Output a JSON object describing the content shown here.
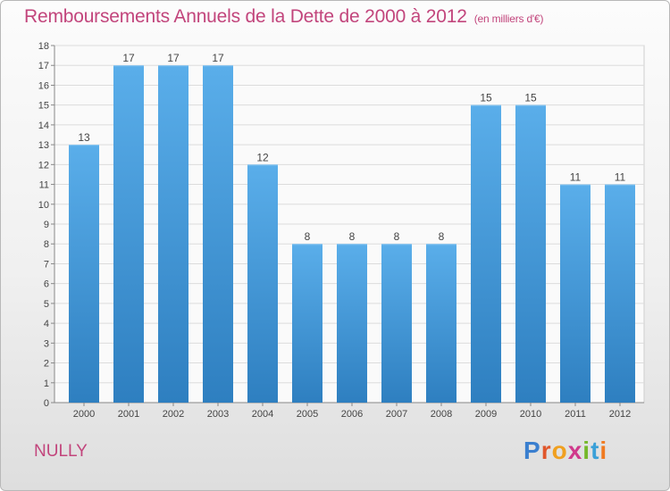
{
  "title": "Remboursements Annuels de la Dette de 2000 à 2012",
  "unit": "(en milliers d'€)",
  "town": "NULLY",
  "logo": {
    "letters": [
      "P",
      "r",
      "o",
      "x",
      "i",
      "t",
      "i"
    ],
    "colors": [
      "#3a7fcf",
      "#e0562b",
      "#f0a020",
      "#d03a8c",
      "#76b82a",
      "#3aa0d8",
      "#f07a20"
    ]
  },
  "colors": {
    "bar_light": "#5aaeea",
    "bar_dark": "#2e7fc0",
    "title": "#c2457c"
  },
  "chart_data": {
    "type": "bar",
    "title": "Remboursements Annuels de la Dette de 2000 à 2012",
    "subtitle": "(en milliers d'€)",
    "categories": [
      "2000",
      "2001",
      "2002",
      "2003",
      "2004",
      "2005",
      "2006",
      "2007",
      "2008",
      "2009",
      "2010",
      "2011",
      "2012"
    ],
    "values": [
      13,
      17,
      17,
      17,
      12,
      8,
      8,
      8,
      8,
      15,
      15,
      11,
      11
    ],
    "xlabel": "",
    "ylabel": "",
    "ylim": [
      0,
      18
    ],
    "yticks": [
      0,
      1,
      2,
      3,
      4,
      5,
      6,
      7,
      8,
      9,
      10,
      11,
      12,
      13,
      14,
      15,
      16,
      17,
      18
    ],
    "grid": true
  }
}
